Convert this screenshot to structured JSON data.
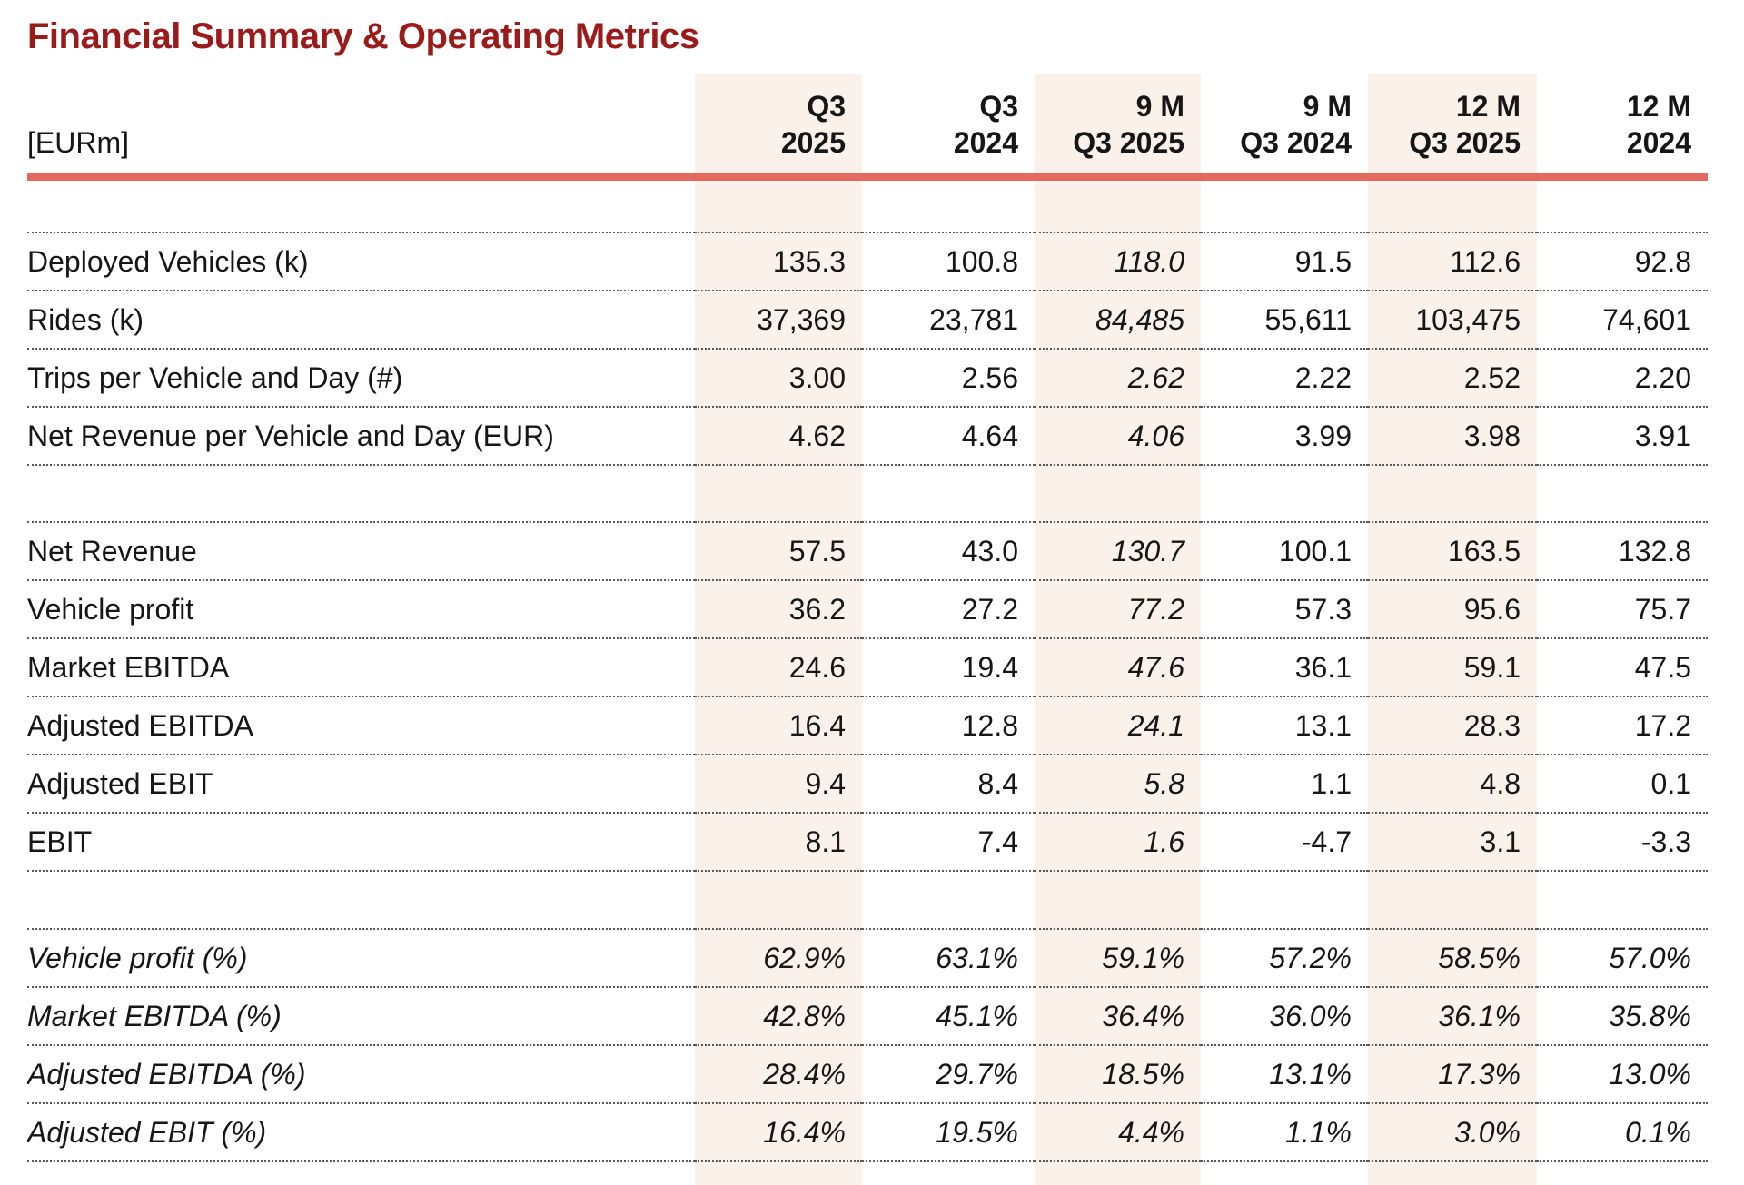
{
  "title": "Financial Summary & Operating Metrics",
  "unit_label": "[EURm]",
  "colors": {
    "title_red": "#9B1A1A",
    "accent_red": "#E4695F",
    "highlight_bg": "#FAF1EA",
    "text": "#161616",
    "dotted_line": "#595959"
  },
  "columns": [
    {
      "line1": "Q3",
      "line2": "2025",
      "highlight": true
    },
    {
      "line1": "Q3",
      "line2": "2024",
      "highlight": false
    },
    {
      "line1": "9 M",
      "line2": "Q3 2025",
      "highlight": true
    },
    {
      "line1": "9 M",
      "line2": "Q3 2024",
      "highlight": false
    },
    {
      "line1": "12 M",
      "line2": "Q3 2025",
      "highlight": true
    },
    {
      "line1": "12 M",
      "line2": "2024",
      "highlight": false
    }
  ],
  "italic_value_column_index": 2,
  "sections": [
    {
      "name": "operating-metrics",
      "italic": false,
      "rows": [
        {
          "label": "Deployed Vehicles (k)",
          "values": [
            "135.3",
            "100.8",
            "118.0",
            "91.5",
            "112.6",
            "92.8"
          ]
        },
        {
          "label": "Rides (k)",
          "values": [
            "37,369",
            "23,781",
            "84,485",
            "55,611",
            "103,475",
            "74,601"
          ]
        },
        {
          "label": "Trips per Vehicle and Day (#)",
          "values": [
            "3.00",
            "2.56",
            "2.62",
            "2.22",
            "2.52",
            "2.20"
          ]
        },
        {
          "label": "Net Revenue per Vehicle and Day (EUR)",
          "values": [
            "4.62",
            "4.64",
            "4.06",
            "3.99",
            "3.98",
            "3.91"
          ]
        }
      ]
    },
    {
      "name": "financials",
      "italic": false,
      "rows": [
        {
          "label": "Net Revenue",
          "values": [
            "57.5",
            "43.0",
            "130.7",
            "100.1",
            "163.5",
            "132.8"
          ]
        },
        {
          "label": "Vehicle profit",
          "values": [
            "36.2",
            "27.2",
            "77.2",
            "57.3",
            "95.6",
            "75.7"
          ]
        },
        {
          "label": "Market EBITDA",
          "values": [
            "24.6",
            "19.4",
            "47.6",
            "36.1",
            "59.1",
            "47.5"
          ]
        },
        {
          "label": "Adjusted EBITDA",
          "values": [
            "16.4",
            "12.8",
            "24.1",
            "13.1",
            "28.3",
            "17.2"
          ]
        },
        {
          "label": "Adjusted EBIT",
          "values": [
            "9.4",
            "8.4",
            "5.8",
            "1.1",
            "4.8",
            "0.1"
          ]
        },
        {
          "label": "EBIT",
          "values": [
            "8.1",
            "7.4",
            "1.6",
            "-4.7",
            "3.1",
            "-3.3"
          ]
        }
      ]
    },
    {
      "name": "margins",
      "italic": true,
      "rows": [
        {
          "label": "Vehicle profit (%)",
          "values": [
            "62.9%",
            "63.1%",
            "59.1%",
            "57.2%",
            "58.5%",
            "57.0%"
          ]
        },
        {
          "label": "Market EBITDA (%)",
          "values": [
            "42.8%",
            "45.1%",
            "36.4%",
            "36.0%",
            "36.1%",
            "35.8%"
          ]
        },
        {
          "label": "Adjusted EBITDA (%)",
          "values": [
            "28.4%",
            "29.7%",
            "18.5%",
            "13.1%",
            "17.3%",
            "13.0%"
          ]
        },
        {
          "label": "Adjusted EBIT (%)",
          "values": [
            "16.4%",
            "19.5%",
            "4.4%",
            "1.1%",
            "3.0%",
            "0.1%"
          ]
        }
      ]
    }
  ]
}
